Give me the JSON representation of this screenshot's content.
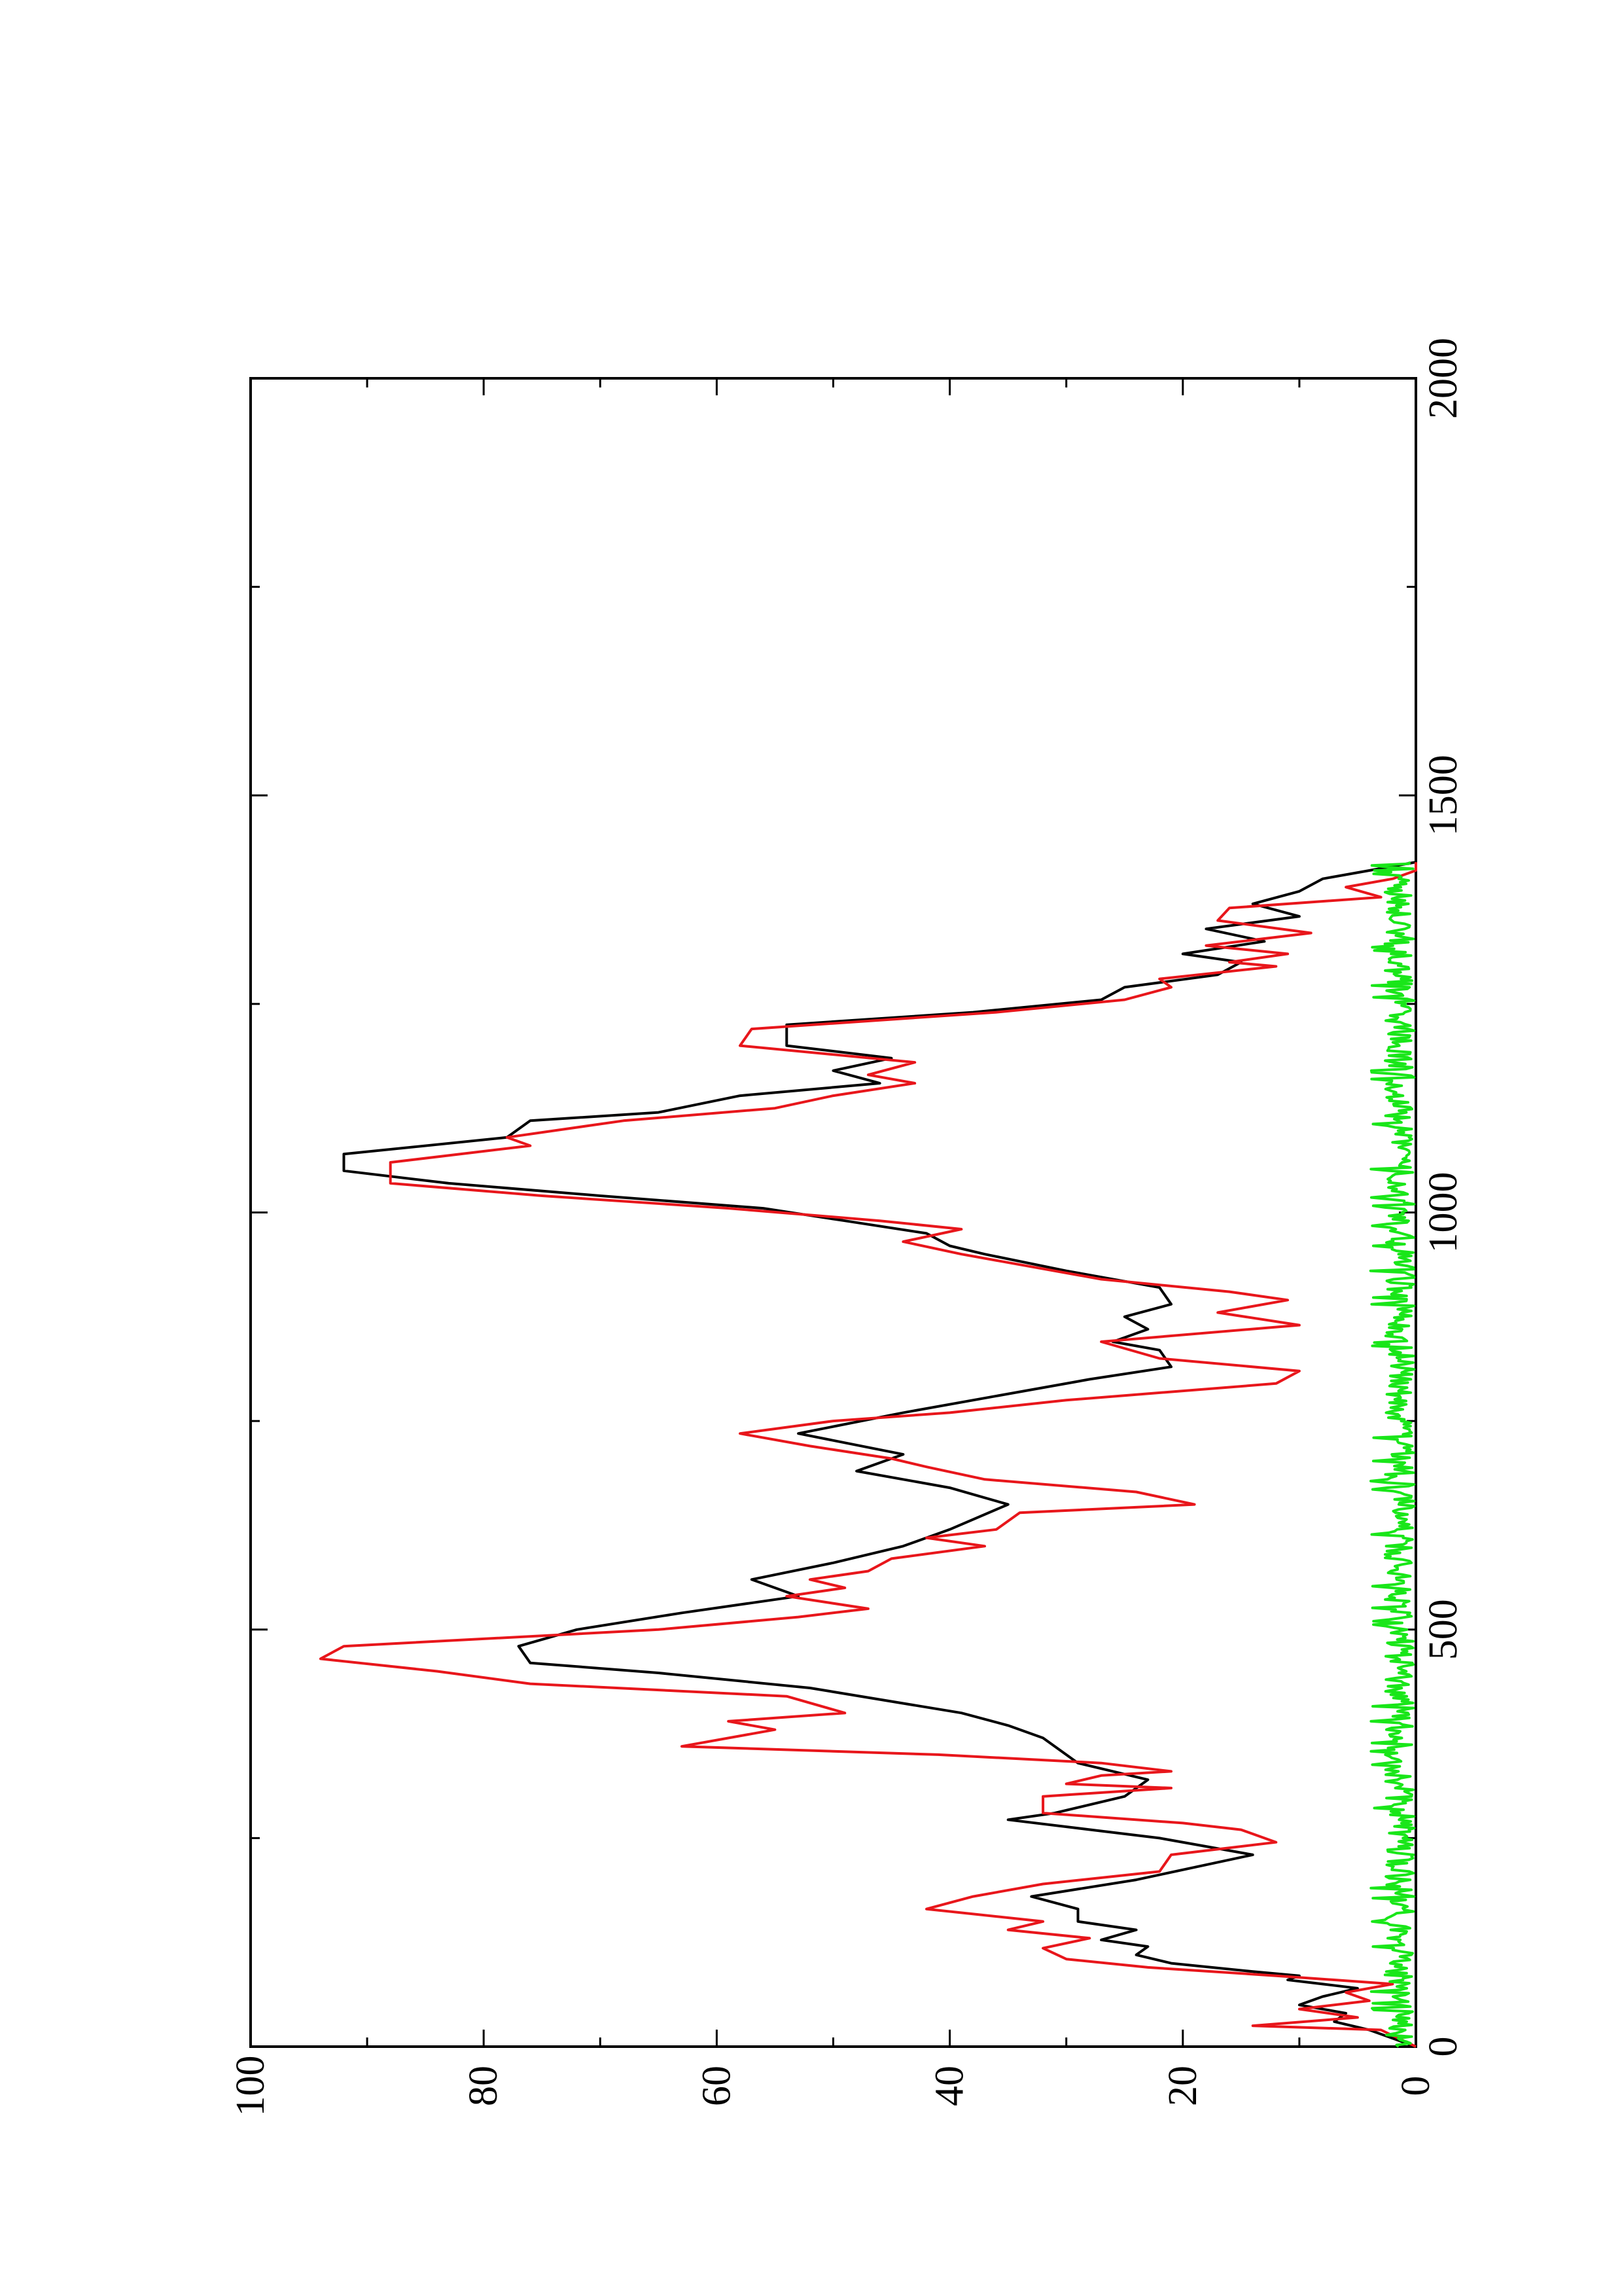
{
  "chart_data": {
    "type": "line",
    "title": "",
    "xlabel": "",
    "ylabel": "",
    "orientation": "rotated-90-ccw",
    "xlim": [
      0,
      2000
    ],
    "ylim": [
      0,
      100
    ],
    "x_ticks": [
      "0",
      "500",
      "1000",
      "1500",
      "2000"
    ],
    "y_ticks": [
      "0",
      "20",
      "40",
      "60",
      "80",
      "100"
    ],
    "grid": false,
    "legend": "none",
    "colors": {
      "black": "#000000",
      "red": "#e8161b",
      "green": "#19e619"
    },
    "series": [
      {
        "color": "black",
        "points": [
          [
            0,
            0
          ],
          [
            20,
            4
          ],
          [
            30,
            7
          ],
          [
            40,
            6
          ],
          [
            50,
            10
          ],
          [
            60,
            8
          ],
          [
            70,
            5
          ],
          [
            75,
            8
          ],
          [
            80,
            11
          ],
          [
            85,
            10
          ],
          [
            90,
            14
          ],
          [
            100,
            21
          ],
          [
            110,
            24
          ],
          [
            120,
            23
          ],
          [
            128,
            27
          ],
          [
            140,
            24
          ],
          [
            150,
            29
          ],
          [
            165,
            29
          ],
          [
            180,
            33
          ],
          [
            200,
            24
          ],
          [
            230,
            14
          ],
          [
            250,
            22
          ],
          [
            272,
            35
          ],
          [
            280,
            31
          ],
          [
            300,
            25
          ],
          [
            320,
            23
          ],
          [
            340,
            29
          ],
          [
            370,
            32
          ],
          [
            385,
            35
          ],
          [
            400,
            39
          ],
          [
            430,
            52
          ],
          [
            448,
            65
          ],
          [
            460,
            76
          ],
          [
            480,
            77
          ],
          [
            500,
            72
          ],
          [
            520,
            63
          ],
          [
            540,
            53
          ],
          [
            560,
            57
          ],
          [
            580,
            50
          ],
          [
            600,
            44
          ],
          [
            620,
            40
          ],
          [
            650,
            35
          ],
          [
            670,
            40
          ],
          [
            690,
            48
          ],
          [
            710,
            44
          ],
          [
            735,
            53
          ],
          [
            760,
            44
          ],
          [
            800,
            28
          ],
          [
            815,
            21
          ],
          [
            835,
            22
          ],
          [
            845,
            26
          ],
          [
            860,
            23
          ],
          [
            875,
            25
          ],
          [
            890,
            21
          ],
          [
            910,
            22
          ],
          [
            930,
            30
          ],
          [
            950,
            37
          ],
          [
            960,
            40
          ],
          [
            975,
            42
          ],
          [
            990,
            49
          ],
          [
            1005,
            56
          ],
          [
            1020,
            70
          ],
          [
            1035,
            83
          ],
          [
            1050,
            92
          ],
          [
            1070,
            92
          ],
          [
            1090,
            78
          ],
          [
            1100,
            77
          ],
          [
            1110,
            76
          ],
          [
            1120,
            65
          ],
          [
            1140,
            58
          ],
          [
            1155,
            46
          ],
          [
            1170,
            50
          ],
          [
            1185,
            45
          ],
          [
            1200,
            54
          ],
          [
            1225,
            54
          ],
          [
            1240,
            38
          ],
          [
            1255,
            27
          ],
          [
            1270,
            25
          ],
          [
            1285,
            17
          ],
          [
            1300,
            15
          ],
          [
            1310,
            20
          ],
          [
            1325,
            13
          ],
          [
            1340,
            18
          ],
          [
            1355,
            10
          ],
          [
            1370,
            14
          ],
          [
            1385,
            10
          ],
          [
            1400,
            8
          ],
          [
            1410,
            4
          ],
          [
            1420,
            0
          ]
        ]
      },
      {
        "color": "red",
        "points": [
          [
            0,
            0
          ],
          [
            20,
            3
          ],
          [
            25,
            14
          ],
          [
            35,
            5
          ],
          [
            45,
            10
          ],
          [
            55,
            4
          ],
          [
            65,
            6
          ],
          [
            75,
            2
          ],
          [
            85,
            12
          ],
          [
            95,
            23
          ],
          [
            105,
            30
          ],
          [
            118,
            32
          ],
          [
            130,
            28
          ],
          [
            140,
            35
          ],
          [
            150,
            32
          ],
          [
            165,
            42
          ],
          [
            180,
            38
          ],
          [
            195,
            32
          ],
          [
            210,
            22
          ],
          [
            230,
            21
          ],
          [
            245,
            12
          ],
          [
            260,
            15
          ],
          [
            268,
            20
          ],
          [
            280,
            32
          ],
          [
            300,
            32
          ],
          [
            310,
            21
          ],
          [
            315,
            30
          ],
          [
            325,
            27
          ],
          [
            330,
            21
          ],
          [
            340,
            27
          ],
          [
            350,
            41
          ],
          [
            360,
            63
          ],
          [
            380,
            55
          ],
          [
            390,
            59
          ],
          [
            400,
            49
          ],
          [
            420,
            54
          ],
          [
            435,
            76
          ],
          [
            450,
            84
          ],
          [
            465,
            94
          ],
          [
            480,
            92
          ],
          [
            500,
            65
          ],
          [
            515,
            53
          ],
          [
            525,
            47
          ],
          [
            540,
            54
          ],
          [
            550,
            49
          ],
          [
            560,
            52
          ],
          [
            570,
            47
          ],
          [
            585,
            45
          ],
          [
            600,
            37
          ],
          [
            610,
            42
          ],
          [
            620,
            36
          ],
          [
            640,
            34
          ],
          [
            650,
            19
          ],
          [
            665,
            24
          ],
          [
            680,
            37
          ],
          [
            695,
            42
          ],
          [
            705,
            45
          ],
          [
            720,
            52
          ],
          [
            735,
            58
          ],
          [
            750,
            50
          ],
          [
            760,
            40
          ],
          [
            775,
            30
          ],
          [
            795,
            12
          ],
          [
            810,
            10
          ],
          [
            825,
            22
          ],
          [
            845,
            27
          ],
          [
            865,
            10
          ],
          [
            880,
            17
          ],
          [
            895,
            11
          ],
          [
            905,
            16
          ],
          [
            920,
            27
          ],
          [
            950,
            39
          ],
          [
            965,
            44
          ],
          [
            980,
            39
          ],
          [
            990,
            46
          ],
          [
            1005,
            59
          ],
          [
            1020,
            75
          ],
          [
            1035,
            88
          ],
          [
            1060,
            88
          ],
          [
            1080,
            76
          ],
          [
            1090,
            78
          ],
          [
            1110,
            68
          ],
          [
            1125,
            55
          ],
          [
            1140,
            50
          ],
          [
            1155,
            43
          ],
          [
            1165,
            47
          ],
          [
            1180,
            43
          ],
          [
            1200,
            58
          ],
          [
            1220,
            57
          ],
          [
            1240,
            36
          ],
          [
            1255,
            25
          ],
          [
            1270,
            21
          ],
          [
            1280,
            22
          ],
          [
            1295,
            12
          ],
          [
            1300,
            16
          ],
          [
            1310,
            11
          ],
          [
            1320,
            18
          ],
          [
            1335,
            9
          ],
          [
            1350,
            17
          ],
          [
            1365,
            16
          ],
          [
            1378,
            3
          ],
          [
            1390,
            6
          ],
          [
            1400,
            2
          ],
          [
            1410,
            0
          ],
          [
            1420,
            0
          ]
        ]
      },
      {
        "color": "green",
        "profile": "noise-band",
        "x_range": [
          0,
          1420
        ],
        "mean": 1.5,
        "max": 4
      }
    ]
  }
}
